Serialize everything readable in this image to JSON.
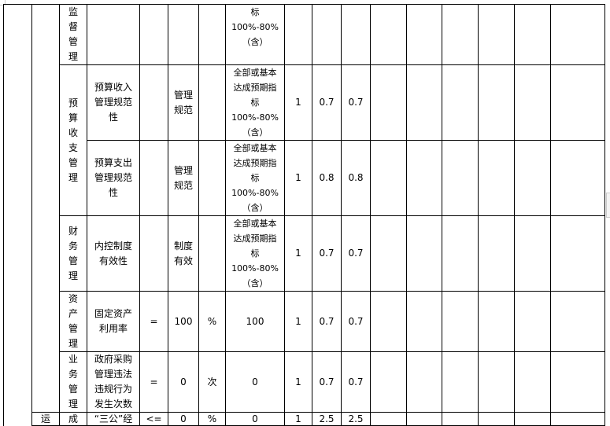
{
  "table": {
    "rows": [
      {
        "category": "监\n督\n管\n理",
        "indicator": "",
        "operator": "",
        "target": "",
        "unit": "",
        "standard": "标\n100%-80%\n（含）",
        "weight": "",
        "score1": "",
        "score2": ""
      },
      {
        "category": "预\n算\n收\n支\n管\n理",
        "indicator": "预算收入\n管理规范\n性",
        "operator": "",
        "target": "管理\n规范",
        "unit": "",
        "standard": "全部或基本\n达成预期指\n标\n100%-80%\n（含）",
        "weight": "1",
        "score1": "0.7",
        "score2": "0.7"
      },
      {
        "category": "",
        "indicator": "预算支出\n管理规范\n性",
        "operator": "",
        "target": "管理\n规范",
        "unit": "",
        "standard": "全部或基本\n达成预期指\n标\n100%-80%\n（含）",
        "weight": "1",
        "score1": "0.8",
        "score2": "0.8"
      },
      {
        "category": "财\n务\n管\n理",
        "indicator": "内控制度\n有效性",
        "operator": "",
        "target": "制度\n有效",
        "unit": "",
        "standard": "全部或基本\n达成预期指\n标\n100%-80%\n（含）",
        "weight": "1",
        "score1": "0.7",
        "score2": "0.7"
      },
      {
        "category": "资\n产\n管\n理",
        "indicator": "固定资产\n利用率",
        "operator": "=",
        "target": "100",
        "unit": "%",
        "standard": "100",
        "weight": "1",
        "score1": "0.7",
        "score2": "0.7"
      },
      {
        "category": "业\n务\n管\n理",
        "indicator": "政府采购\n管理违法\n违规行为\n发生次数",
        "operator": "=",
        "target": "0",
        "unit": "次",
        "standard": "0",
        "weight": "1",
        "score1": "0.7",
        "score2": "0.7"
      },
      {
        "level2": "运",
        "category": "成",
        "indicator": "“三公”经",
        "operator": "<=",
        "target": "0",
        "unit": "%",
        "standard": "0",
        "weight": "1",
        "score1": "2.5",
        "score2": "2.5"
      }
    ]
  }
}
